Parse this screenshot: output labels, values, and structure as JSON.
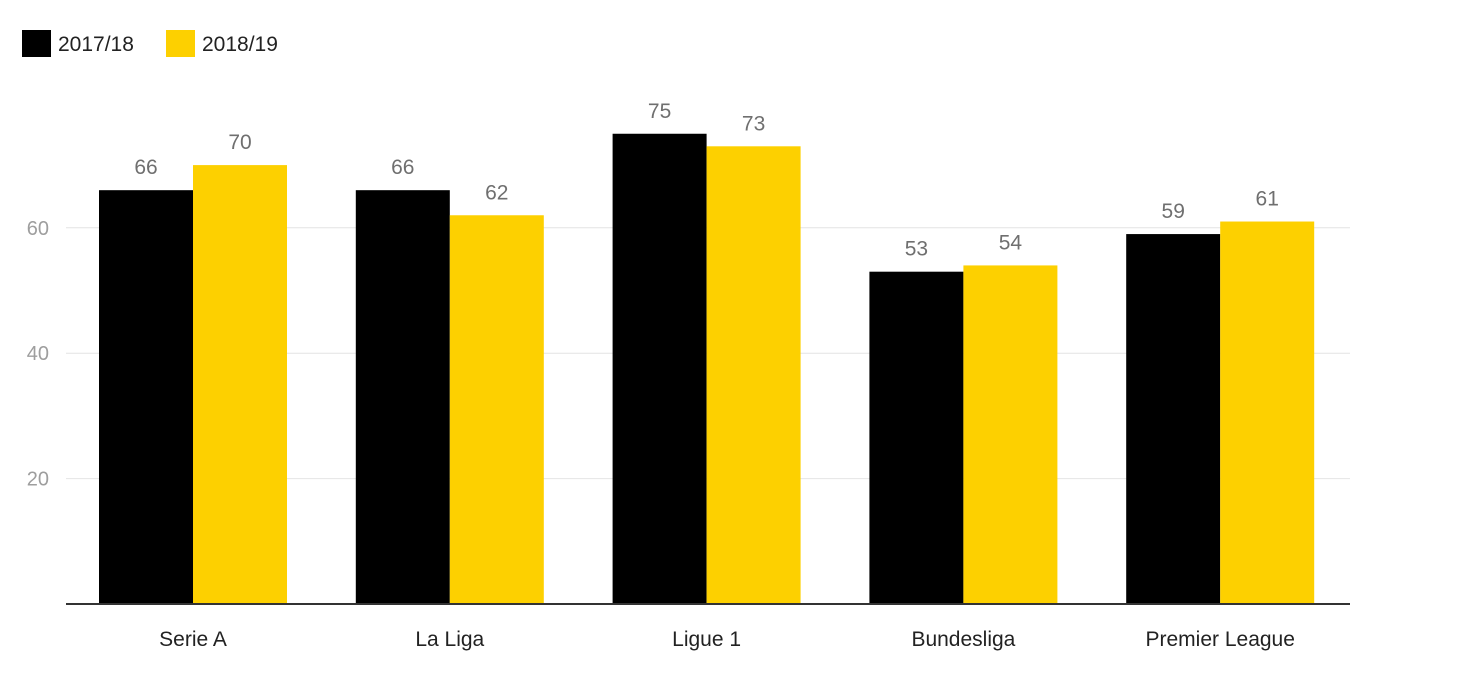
{
  "chart_data": {
    "type": "bar",
    "categories": [
      "Serie A",
      "La Liga",
      "Ligue 1",
      "Bundesliga",
      "Premier League"
    ],
    "series": [
      {
        "name": "2017/18",
        "color": "#000000",
        "values": [
          66,
          66,
          75,
          53,
          59
        ]
      },
      {
        "name": "2018/19",
        "color": "#fdd000",
        "values": [
          70,
          62,
          73,
          54,
          61
        ]
      }
    ],
    "title": "",
    "xlabel": "",
    "ylabel": "",
    "ylim": [
      0,
      80
    ],
    "yticks": [
      20,
      40,
      60
    ],
    "grid": true,
    "legend_position": "top-left",
    "data_labels": true
  }
}
